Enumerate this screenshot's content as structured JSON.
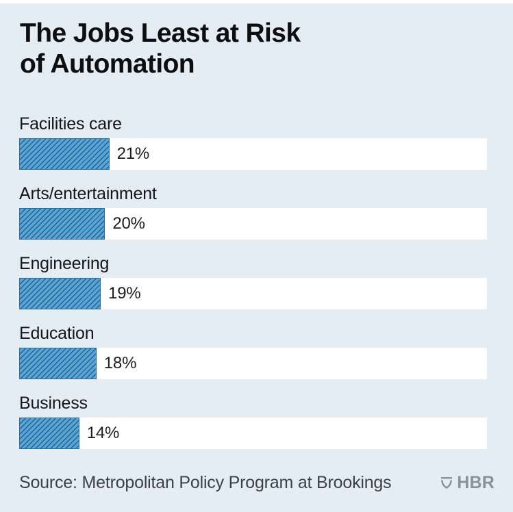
{
  "header": {
    "title_lines": [
      "The Jobs Least at Risk",
      "of Automation"
    ]
  },
  "chart_data": {
    "type": "bar",
    "orientation": "horizontal",
    "title": "The Jobs Least at Risk of Automation",
    "categories": [
      "Facilities care",
      "Arts/entertainment",
      "Engineering",
      "Education",
      "Business"
    ],
    "values": [
      21,
      20,
      19,
      18,
      14
    ],
    "value_labels": [
      "21%",
      "20%",
      "19%",
      "18%",
      "14%"
    ],
    "unit": "%",
    "xlim": [
      0,
      109
    ],
    "grid": false,
    "legend": false,
    "bar_color": "#58a5d8",
    "hatch_color": "#265c85",
    "bar_border_color": "#2e6d9c",
    "track_color": "#ffffff",
    "background_color": "#e3edf3"
  },
  "footer": {
    "source": "Source: Metropolitan Policy Program at Brookings",
    "brand": "HBR",
    "brand_color": "#899199"
  }
}
